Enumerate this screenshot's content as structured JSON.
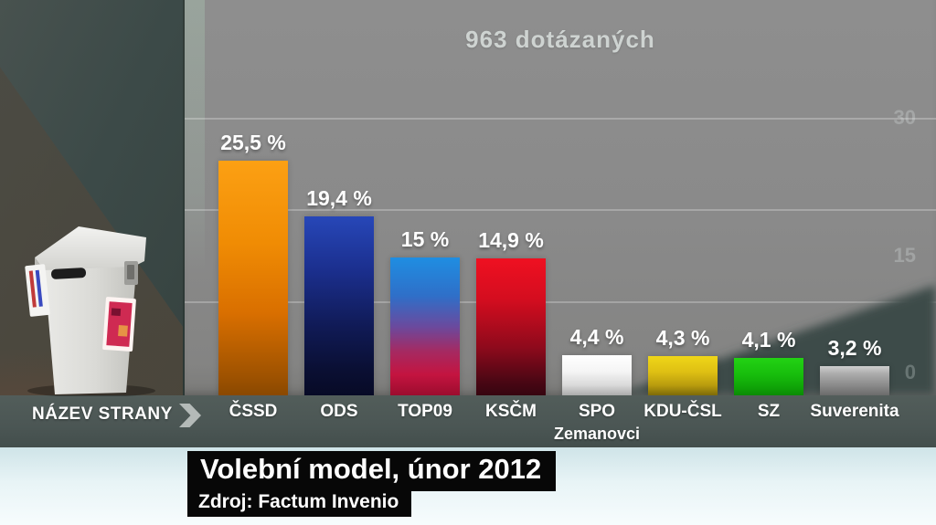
{
  "header": {
    "title": "963 dotázaných"
  },
  "chart_data": {
    "type": "bar",
    "title": "963 dotázaných",
    "categories": [
      "ČSSD",
      "ODS",
      "TOP09",
      "KSČM",
      "SPO",
      "KDU-ČSL",
      "SZ",
      "Suverenita"
    ],
    "sublabels": [
      "",
      "",
      "",
      "",
      "Zemanovci",
      "",
      "",
      ""
    ],
    "values": [
      25.5,
      19.4,
      15,
      14.9,
      4.4,
      4.3,
      4.1,
      3.2
    ],
    "value_labels": [
      "25,5 %",
      "19,4 %",
      "15 %",
      "14,9 %",
      "4,4 %",
      "4,3 %",
      "4,1 %",
      "3,2 %"
    ],
    "xlabel": "NÁZEV STRANY",
    "ylabel": "",
    "ylim": [
      0,
      42
    ],
    "grid": true,
    "gridline_values": [
      10,
      20,
      30
    ],
    "right_axis_labels": [
      {
        "text": "30",
        "value": 30
      },
      {
        "text": "15",
        "value": 15
      },
      {
        "text": "0",
        "value": 0
      }
    ],
    "legend": false,
    "bar_gradients": [
      [
        [
          "#fca013",
          0
        ],
        [
          "#f08c04",
          35
        ],
        [
          "#d96f00",
          65
        ],
        [
          "#9e5200",
          92
        ],
        [
          "#8a4800",
          100
        ]
      ],
      [
        [
          "#2747b8",
          0
        ],
        [
          "#1b2f8e",
          30
        ],
        [
          "#101a55",
          62
        ],
        [
          "#0a0f33",
          86
        ],
        [
          "#070a26",
          100
        ]
      ],
      [
        [
          "#1f8ee2",
          0
        ],
        [
          "#2f6fc8",
          28
        ],
        [
          "#6a4a9e",
          50
        ],
        [
          "#a52a62",
          68
        ],
        [
          "#c41440",
          85
        ],
        [
          "#9c0c2e",
          100
        ]
      ],
      [
        [
          "#ef1021",
          0
        ],
        [
          "#d40d1f",
          30
        ],
        [
          "#8e0a1c",
          65
        ],
        [
          "#4a0714",
          90
        ],
        [
          "#360510",
          100
        ]
      ],
      [
        [
          "#ffffff",
          0
        ],
        [
          "#f5f5f5",
          40
        ],
        [
          "#d9d9d9",
          75
        ],
        [
          "#ababab",
          100
        ]
      ],
      [
        [
          "#efd618",
          0
        ],
        [
          "#dfc013",
          40
        ],
        [
          "#b89b0e",
          75
        ],
        [
          "#7d6a08",
          100
        ]
      ],
      [
        [
          "#23d214",
          0
        ],
        [
          "#17bd0c",
          45
        ],
        [
          "#0fa207",
          80
        ],
        [
          "#0a8a05",
          100
        ]
      ],
      [
        [
          "#cfcfcf",
          0
        ],
        [
          "#adadad",
          25
        ],
        [
          "#8f8f8f",
          60
        ],
        [
          "#6b6b6b",
          100
        ]
      ]
    ]
  },
  "axis": {
    "x_axis_title": "NÁZEV STRANY"
  },
  "footer": {
    "headline": "Volební model, únor 2012",
    "source": "Zdroj: Factum Invenio"
  },
  "colors": {
    "panel_gray": "#8a8a8a",
    "band_slate": "#4b5654",
    "background_teal": "#3c4a48",
    "wedge_teal": "#3e4c4a",
    "headline_box_black": "#070707",
    "text_white": "#ffffff",
    "title_gray": "#ced3d1"
  }
}
